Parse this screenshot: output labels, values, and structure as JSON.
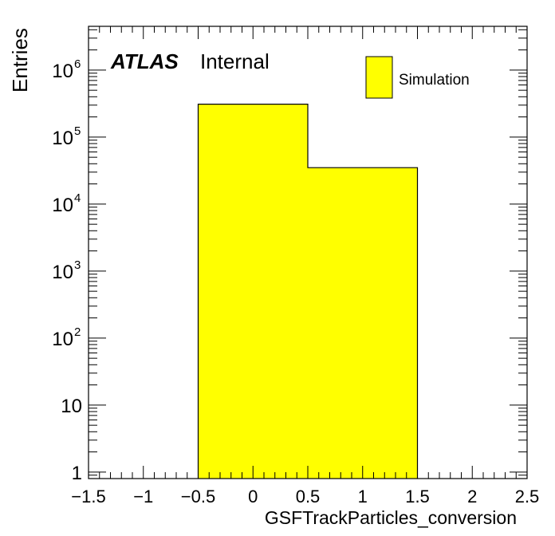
{
  "chart_data": {
    "type": "bar",
    "histogram": true,
    "xlabel": "GSFTrackParticles_conversion",
    "ylabel": "Entries",
    "xlim": [
      -1.5,
      2.5
    ],
    "ylim": [
      0.8,
      4500000
    ],
    "log_y": true,
    "grid": false,
    "legend_position": "top-right",
    "bins": [
      {
        "x_low": -0.5,
        "x_high": 0.5,
        "value": 310000
      },
      {
        "x_low": 0.5,
        "x_high": 1.5,
        "value": 35000
      }
    ],
    "series": [
      {
        "name": "Simulation",
        "color": "#ffff00",
        "values": [
          310000,
          35000
        ]
      }
    ],
    "x_ticks": [
      {
        "value": -1.5,
        "label": "−1.5"
      },
      {
        "value": -1,
        "label": "−1"
      },
      {
        "value": -0.5,
        "label": "−0.5"
      },
      {
        "value": 0,
        "label": "0"
      },
      {
        "value": 0.5,
        "label": "0.5"
      },
      {
        "value": 1,
        "label": "1"
      },
      {
        "value": 1.5,
        "label": "1.5"
      },
      {
        "value": 2,
        "label": "2"
      },
      {
        "value": 2.5,
        "label": "2.5"
      }
    ],
    "y_ticks": [
      {
        "value": 1,
        "base": "1",
        "exp": ""
      },
      {
        "value": 10,
        "base": "10",
        "exp": ""
      },
      {
        "value": 100,
        "base": "10",
        "exp": "2"
      },
      {
        "value": 1000,
        "base": "10",
        "exp": "3"
      },
      {
        "value": 10000,
        "base": "10",
        "exp": "4"
      },
      {
        "value": 100000,
        "base": "10",
        "exp": "5"
      },
      {
        "value": 1000000,
        "base": "10",
        "exp": "6"
      }
    ],
    "annotations": {
      "atlas": "ATLAS",
      "internal": "Internal"
    },
    "colors": {
      "fill": "#ffff00",
      "line": "#000000"
    }
  }
}
